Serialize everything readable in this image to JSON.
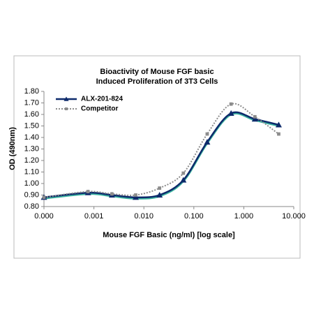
{
  "chart_data": {
    "type": "line",
    "title": [
      "Bioactivity of Mouse FGF basic",
      "Induced Proliferation of 3T3 Cells"
    ],
    "x_label": "Mouse FGF Basic (ng/ml) [log scale]",
    "y_label": "OD (490nm)",
    "x": [
      0.0001,
      0.000762,
      0.00229,
      0.00686,
      0.0206,
      0.0617,
      0.185,
      0.556,
      1.667,
      5
    ],
    "x_log": true,
    "xlim": [
      0.0001,
      10
    ],
    "xticks": [
      {
        "value": 0.0001,
        "label": "0.000"
      },
      {
        "value": 0.001,
        "label": "0.001"
      },
      {
        "value": 0.01,
        "label": "0.010"
      },
      {
        "value": 0.1,
        "label": "0.100"
      },
      {
        "value": 1,
        "label": "1.000"
      },
      {
        "value": 10,
        "label": "10.000"
      }
    ],
    "ylim": [
      0.8,
      1.8
    ],
    "yticks": [
      {
        "value": 0.8,
        "label": "0.80"
      },
      {
        "value": 0.9,
        "label": "0.90"
      },
      {
        "value": 1.0,
        "label": "1.00"
      },
      {
        "value": 1.1,
        "label": "1.10"
      },
      {
        "value": 1.2,
        "label": "1.20"
      },
      {
        "value": 1.3,
        "label": "1.30"
      },
      {
        "value": 1.4,
        "label": "1.40"
      },
      {
        "value": 1.5,
        "label": "1.50"
      },
      {
        "value": 1.6,
        "label": "1.60"
      },
      {
        "value": 1.7,
        "label": "1.70"
      },
      {
        "value": 1.8,
        "label": "1.80"
      }
    ],
    "legend": "upper-left",
    "series": [
      {
        "name": "ALX-201-824",
        "color": "#0d2a6b",
        "marker": "triangle",
        "dash": "solid",
        "values": [
          0.88,
          0.92,
          0.9,
          0.88,
          0.9,
          1.03,
          1.36,
          1.61,
          1.56,
          1.51
        ]
      },
      {
        "name": "Competitor",
        "color": "#8c8c8c",
        "marker": "square",
        "dash": "dotted",
        "values": [
          0.88,
          0.93,
          0.91,
          0.9,
          0.96,
          1.09,
          1.43,
          1.69,
          1.58,
          1.43
        ]
      }
    ]
  }
}
